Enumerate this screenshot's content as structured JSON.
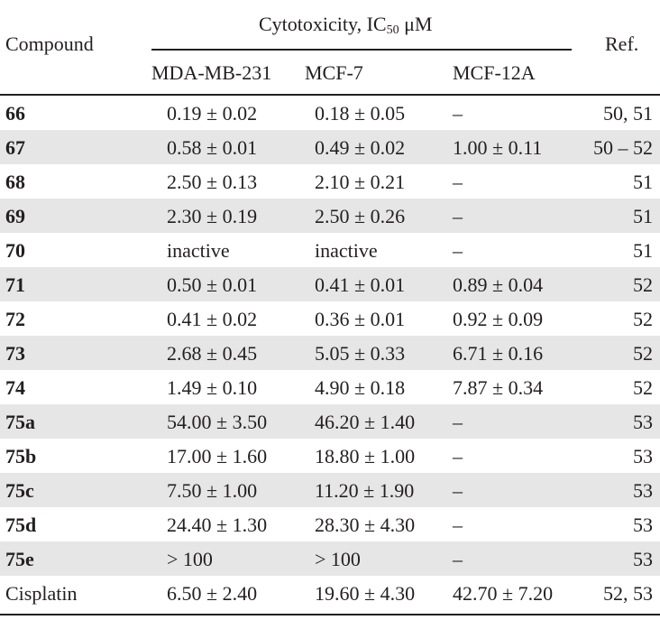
{
  "header": {
    "compound": "Compound",
    "group_label": "Cytotoxicity, IC",
    "group_sub": "50",
    "group_unit": " μM",
    "ref": "Ref.",
    "columns": [
      "MDA-MB-231",
      "MCF-7",
      "MCF-12A"
    ]
  },
  "stripe_color": "#e6e6e7",
  "rows": [
    {
      "compound": "66",
      "bold": true,
      "mda": "0.19 ± 0.02",
      "mcf7": "0.18 ± 0.05",
      "mcf12a": "–",
      "ref": "50, 51"
    },
    {
      "compound": "67",
      "bold": true,
      "mda": "0.58 ± 0.01",
      "mcf7": "0.49 ± 0.02",
      "mcf12a": "1.00 ± 0.11",
      "ref": "50 – 52"
    },
    {
      "compound": "68",
      "bold": true,
      "mda": "2.50 ± 0.13",
      "mcf7": "2.10 ± 0.21",
      "mcf12a": "–",
      "ref": "51"
    },
    {
      "compound": "69",
      "bold": true,
      "mda": "2.30 ± 0.19",
      "mcf7": "2.50 ± 0.26",
      "mcf12a": "–",
      "ref": "51"
    },
    {
      "compound": "70",
      "bold": true,
      "mda": "inactive",
      "mcf7": "inactive",
      "mcf12a": "–",
      "ref": "51"
    },
    {
      "compound": "71",
      "bold": true,
      "mda": "0.50 ± 0.01",
      "mcf7": "0.41 ± 0.01",
      "mcf12a": "0.89 ± 0.04",
      "ref": "52"
    },
    {
      "compound": "72",
      "bold": true,
      "mda": "0.41 ± 0.02",
      "mcf7": "0.36 ± 0.01",
      "mcf12a": "0.92 ± 0.09",
      "ref": "52"
    },
    {
      "compound": "73",
      "bold": true,
      "mda": "2.68 ± 0.45",
      "mcf7": "5.05 ± 0.33",
      "mcf12a": "6.71 ± 0.16",
      "ref": "52"
    },
    {
      "compound": "74",
      "bold": true,
      "mda": "1.49 ± 0.10",
      "mcf7": "4.90 ± 0.18",
      "mcf12a": "7.87 ± 0.34",
      "ref": "52"
    },
    {
      "compound": "75a",
      "bold": true,
      "mda": "54.00 ± 3.50",
      "mcf7": "46.20 ± 1.40",
      "mcf12a": "–",
      "ref": "53"
    },
    {
      "compound": "75b",
      "bold": true,
      "mda": "17.00 ± 1.60",
      "mcf7": "18.80 ± 1.00",
      "mcf12a": "–",
      "ref": "53"
    },
    {
      "compound": "75c",
      "bold": true,
      "mda": "7.50 ± 1.00",
      "mcf7": "11.20 ± 1.90",
      "mcf12a": "–",
      "ref": "53"
    },
    {
      "compound": "75d",
      "bold": true,
      "mda": "24.40 ± 1.30",
      "mcf7": "28.30 ± 4.30",
      "mcf12a": "–",
      "ref": "53"
    },
    {
      "compound": "75e",
      "bold": true,
      "mda": "> 100",
      "mcf7": "> 100",
      "mcf12a": "–",
      "ref": "53"
    },
    {
      "compound": "Cisplatin",
      "bold": false,
      "mda": "6.50 ± 2.40",
      "mcf7": "19.60 ± 4.30",
      "mcf12a": "42.70 ± 7.20",
      "ref": "52, 53"
    }
  ]
}
